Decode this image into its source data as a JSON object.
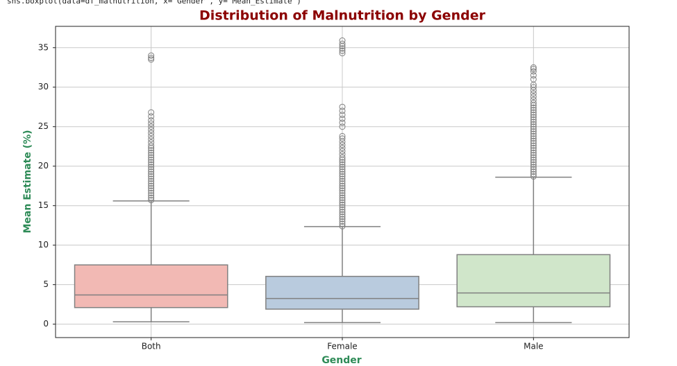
{
  "code": "sns.boxplot(data=df_malnutrition, x='Gender', y='Mean_Estimate')",
  "chart_data": {
    "type": "box",
    "title": "Distribution of Malnutrition by Gender",
    "x_label": "Gender",
    "y_label": "Mean Estimate (%)",
    "categories": [
      "Both",
      "Female",
      "Male"
    ],
    "colors": [
      "#f2b9b4",
      "#b9cbde",
      "#d0e6ca"
    ],
    "edge_color": "#808080",
    "boxes": [
      {
        "whislo": 0.3,
        "q1": 2.1,
        "med": 3.7,
        "q3": 7.5,
        "whishi": 15.6,
        "fliers": [
          15.7,
          16,
          16.3,
          16.6,
          16.9,
          17.2,
          17.5,
          17.8,
          18.1,
          18.4,
          18.7,
          19,
          19.3,
          19.6,
          19.9,
          20.2,
          20.5,
          20.8,
          21.1,
          21.4,
          21.7,
          22,
          22.3,
          22.6,
          23,
          23.4,
          23.8,
          24.2,
          24.6,
          25,
          25.4,
          25.8,
          26.3,
          26.8,
          33.5,
          33.7,
          34
        ]
      },
      {
        "whislo": 0.2,
        "q1": 1.9,
        "med": 3.25,
        "q3": 6.05,
        "whishi": 12.35,
        "fliers": [
          12.4,
          12.7,
          13,
          13.3,
          13.6,
          13.9,
          14.2,
          14.5,
          14.8,
          15.1,
          15.4,
          15.7,
          16,
          16.3,
          16.6,
          16.9,
          17.2,
          17.5,
          17.8,
          18.1,
          18.4,
          18.7,
          19,
          19.3,
          19.6,
          19.9,
          20.2,
          20.5,
          20.8,
          21.1,
          21.5,
          21.9,
          22.3,
          22.7,
          23.1,
          23.5,
          23.8,
          25,
          25.5,
          26,
          26.5,
          27,
          27.5,
          34.3,
          34.6,
          34.9,
          35.2,
          35.5,
          35.9
        ]
      },
      {
        "whislo": 0.2,
        "q1": 2.2,
        "med": 3.95,
        "q3": 8.8,
        "whishi": 18.6,
        "fliers": [
          18.7,
          19,
          19.3,
          19.6,
          19.9,
          20.2,
          20.5,
          20.8,
          21.1,
          21.4,
          21.7,
          22,
          22.3,
          22.6,
          22.9,
          23.2,
          23.5,
          23.8,
          24.1,
          24.4,
          24.7,
          25,
          25.3,
          25.6,
          25.9,
          26.2,
          26.5,
          26.8,
          27.1,
          27.4,
          27.7,
          28,
          28.4,
          28.8,
          29.2,
          29.6,
          30,
          30.3,
          31,
          31.5,
          32,
          32.3,
          32.5
        ]
      }
    ],
    "ylim": [
      -1.7,
      37.7
    ],
    "yticks": [
      0,
      5,
      10,
      15,
      20,
      25,
      30,
      35
    ],
    "grid": true
  }
}
